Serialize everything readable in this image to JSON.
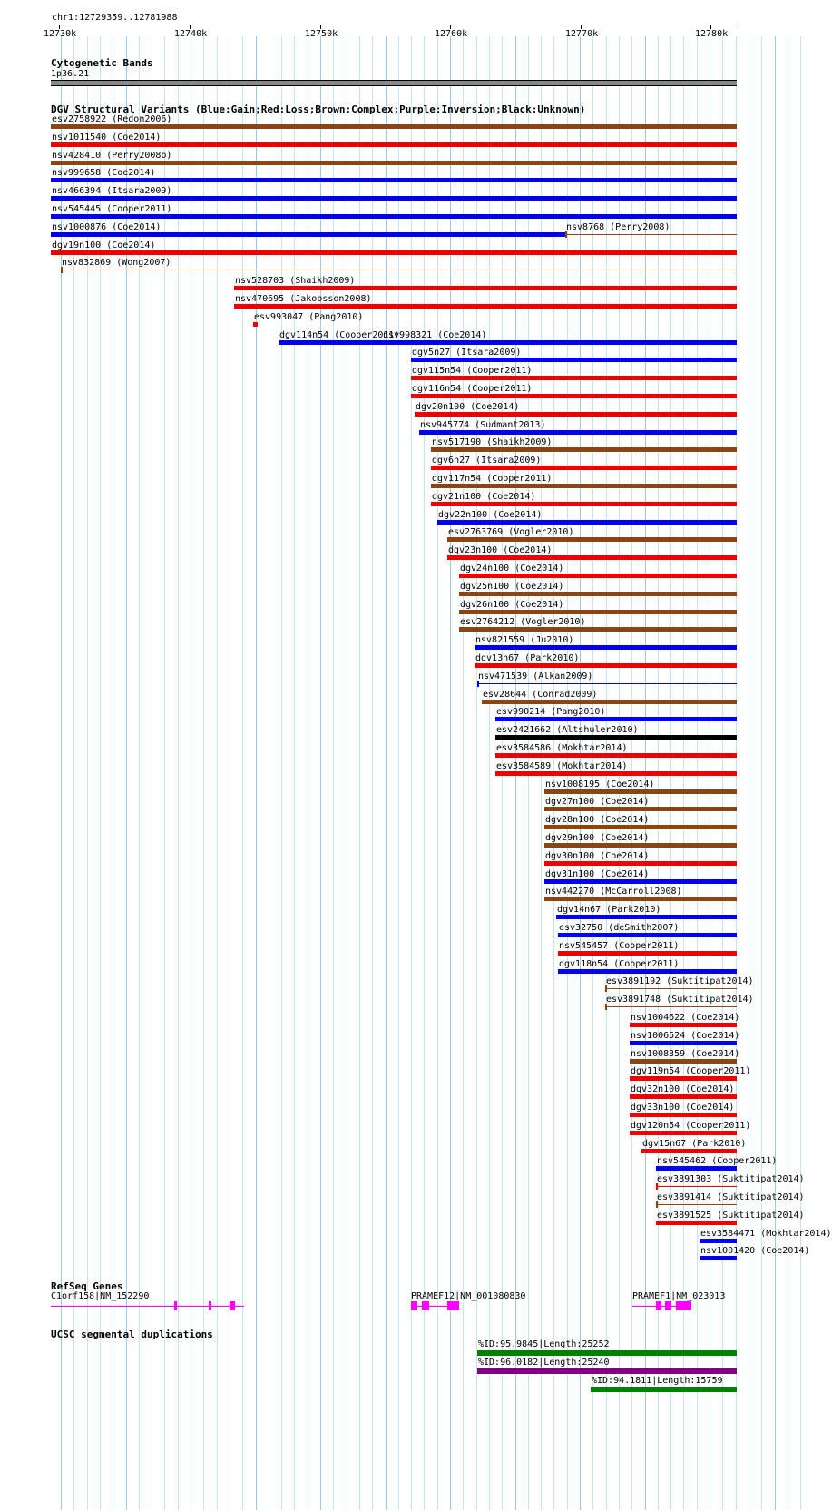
{
  "ruler": {
    "range_label": "chr1:12729359..12781988",
    "ticks": [
      "12730k",
      "12740k",
      "12750k",
      "12760k",
      "12770k",
      "12780k"
    ]
  },
  "cytoband": {
    "title": "Cytogenetic Bands",
    "band_label": "1p36.21"
  },
  "dgv": {
    "title": "DGV Structural Variants (Blue:Gain;Red:Loss;Brown:Complex;Purple:Inversion;Black:Unknown)",
    "colors": {
      "gain": "#0000ee",
      "loss": "#ee0000",
      "complex": "#8b4513",
      "inversion": "#800080",
      "unknown": "#000000"
    },
    "variants": [
      {
        "label": "esv2758922 (Redon2006)",
        "type": "complex",
        "start": 12729359,
        "end": 12781988
      },
      {
        "label": "nsv1011540 (Coe2014)",
        "type": "loss",
        "start": 12729359,
        "end": 12781988
      },
      {
        "label": "nsv428410 (Perry2008b)",
        "type": "complex",
        "start": 12729359,
        "end": 12781988
      },
      {
        "label": "nsv999658 (Coe2014)",
        "type": "gain",
        "start": 12729359,
        "end": 12781988
      },
      {
        "label": "nsv466394 (Itsara2009)",
        "type": "gain",
        "start": 12729359,
        "end": 12781988
      },
      {
        "label": "nsv545445 (Cooper2011)",
        "type": "gain",
        "start": 12729359,
        "end": 12781988
      },
      {
        "label": "nsv1000876 (Coe2014)",
        "type": "gain",
        "start": 12729359,
        "end": 12768800
      },
      {
        "label": "nsv8768 (Perry2008)",
        "type": "complex",
        "start": 12768800,
        "end": 12781988,
        "thin": true,
        "row": 6
      },
      {
        "label": "dgv19n100 (Coe2014)",
        "type": "loss",
        "start": 12729359,
        "end": 12781988
      },
      {
        "label": "nsv832869 (Wong2007)",
        "type": "complex",
        "start": 12730100,
        "end": 12781988,
        "thin": true
      },
      {
        "label": "nsv528703 (Shaikh2009)",
        "type": "loss",
        "start": 12743400,
        "end": 12781988
      },
      {
        "label": "nsv470695 (Jakobsson2008)",
        "type": "loss",
        "start": 12743400,
        "end": 12781988
      },
      {
        "label": "esv993047 (Pang2010)",
        "type": "loss",
        "start": 12744900,
        "end": 12745200
      },
      {
        "label": "nsv998321 (Coe2014)",
        "type": "gain",
        "start": 12754800,
        "end": 12781988,
        "row": 12
      },
      {
        "label": "dgv114n54 (Cooper2011)",
        "type": "gain",
        "start": 12746800,
        "end": 12781988
      },
      {
        "label": "dgv5n27 (Itsara2009)",
        "type": "gain",
        "start": 12757000,
        "end": 12781988
      },
      {
        "label": "dgv115n54 (Cooper2011)",
        "type": "loss",
        "start": 12757000,
        "end": 12781988
      },
      {
        "label": "dgv116n54 (Cooper2011)",
        "type": "loss",
        "start": 12757000,
        "end": 12781988
      },
      {
        "label": "dgv20n100 (Coe2014)",
        "type": "loss",
        "start": 12757300,
        "end": 12781988
      },
      {
        "label": "nsv945774 (Sudmant2013)",
        "type": "gain",
        "start": 12757600,
        "end": 12781988
      },
      {
        "label": "nsv517190 (Shaikh2009)",
        "type": "complex",
        "start": 12758500,
        "end": 12781988
      },
      {
        "label": "dgv6n27 (Itsara2009)",
        "type": "loss",
        "start": 12758500,
        "end": 12781988
      },
      {
        "label": "dgv117n54 (Cooper2011)",
        "type": "complex",
        "start": 12758500,
        "end": 12781988
      },
      {
        "label": "dgv21n100 (Coe2014)",
        "type": "loss",
        "start": 12758500,
        "end": 12781988
      },
      {
        "label": "dgv22n100 (Coe2014)",
        "type": "gain",
        "start": 12759000,
        "end": 12781988
      },
      {
        "label": "esv2763769 (Vogler2010)",
        "type": "complex",
        "start": 12759800,
        "end": 12781988
      },
      {
        "label": "dgv23n100 (Coe2014)",
        "type": "loss",
        "start": 12759800,
        "end": 12781988
      },
      {
        "label": "dgv24n100 (Coe2014)",
        "type": "loss",
        "start": 12760700,
        "end": 12781988
      },
      {
        "label": "dgv25n100 (Coe2014)",
        "type": "complex",
        "start": 12760700,
        "end": 12781988
      },
      {
        "label": "dgv26n100 (Coe2014)",
        "type": "complex",
        "start": 12760700,
        "end": 12781988
      },
      {
        "label": "esv2764212 (Vogler2010)",
        "type": "complex",
        "start": 12760700,
        "end": 12781988
      },
      {
        "label": "nsv821559 (Ju2010)",
        "type": "gain",
        "start": 12761900,
        "end": 12781988
      },
      {
        "label": "dgv13n67 (Park2010)",
        "type": "loss",
        "start": 12761900,
        "end": 12781988
      },
      {
        "label": "nsv471539 (Alkan2009)",
        "type": "gain",
        "start": 12762100,
        "end": 12781988,
        "thin": true
      },
      {
        "label": "esv28644 (Conrad2009)",
        "type": "complex",
        "start": 12762400,
        "end": 12781988
      },
      {
        "label": "esv990214 (Pang2010)",
        "type": "gain",
        "start": 12763500,
        "end": 12781988
      },
      {
        "label": "esv2421662 (Altshuler2010)",
        "type": "unknown",
        "start": 12763500,
        "end": 12781988
      },
      {
        "label": "esv3584586 (Mokhtar2014)",
        "type": "loss",
        "start": 12763500,
        "end": 12781988
      },
      {
        "label": "esv3584589 (Mokhtar2014)",
        "type": "loss",
        "start": 12763500,
        "end": 12781988
      },
      {
        "label": "nsv1008195 (Coe2014)",
        "type": "complex",
        "start": 12767200,
        "end": 12781988
      },
      {
        "label": "dgv27n100 (Coe2014)",
        "type": "complex",
        "start": 12767200,
        "end": 12781988
      },
      {
        "label": "dgv28n100 (Coe2014)",
        "type": "complex",
        "start": 12767200,
        "end": 12781988
      },
      {
        "label": "dgv29n100 (Coe2014)",
        "type": "complex",
        "start": 12767200,
        "end": 12781988
      },
      {
        "label": "dgv30n100 (Coe2014)",
        "type": "loss",
        "start": 12767200,
        "end": 12781988
      },
      {
        "label": "dgv31n100 (Coe2014)",
        "type": "gain",
        "start": 12767200,
        "end": 12781988
      },
      {
        "label": "nsv442270 (McCarroll2008)",
        "type": "complex",
        "start": 12767200,
        "end": 12781988
      },
      {
        "label": "dgv14n67 (Park2010)",
        "type": "gain",
        "start": 12768100,
        "end": 12781988
      },
      {
        "label": "esv32750 (deSmith2007)",
        "type": "gain",
        "start": 12768300,
        "end": 12781988
      },
      {
        "label": "nsv545457 (Cooper2011)",
        "type": "loss",
        "start": 12768300,
        "end": 12781988
      },
      {
        "label": "dgv118n54 (Cooper2011)",
        "type": "gain",
        "start": 12768300,
        "end": 12781988
      },
      {
        "label": "esv3891192 (Suktitipat2014)",
        "type": "complex",
        "start": 12771900,
        "end": 12781988,
        "thin": true
      },
      {
        "label": "esv3891748 (Suktitipat2014)",
        "type": "complex",
        "start": 12771900,
        "end": 12781988,
        "thin": true
      },
      {
        "label": "nsv1004622 (Coe2014)",
        "type": "loss",
        "start": 12773800,
        "end": 12781988
      },
      {
        "label": "nsv1006524 (Coe2014)",
        "type": "gain",
        "start": 12773800,
        "end": 12781988
      },
      {
        "label": "nsv1008359 (Coe2014)",
        "type": "complex",
        "start": 12773800,
        "end": 12781988
      },
      {
        "label": "dgv119n54 (Cooper2011)",
        "type": "loss",
        "start": 12773800,
        "end": 12781988
      },
      {
        "label": "dgv32n100 (Coe2014)",
        "type": "loss",
        "start": 12773800,
        "end": 12781988
      },
      {
        "label": "dgv33n100 (Coe2014)",
        "type": "loss",
        "start": 12773800,
        "end": 12781988
      },
      {
        "label": "dgv120n54 (Cooper2011)",
        "type": "loss",
        "start": 12773800,
        "end": 12781988
      },
      {
        "label": "dgv15n67 (Park2010)",
        "type": "loss",
        "start": 12774700,
        "end": 12781988
      },
      {
        "label": "nsv545462 (Cooper2011)",
        "type": "gain",
        "start": 12775800,
        "end": 12781988
      },
      {
        "label": "esv3891303 (Suktitipat2014)",
        "type": "loss",
        "start": 12775800,
        "end": 12781988,
        "thin": true
      },
      {
        "label": "esv3891414 (Suktitipat2014)",
        "type": "complex",
        "start": 12775800,
        "end": 12781988,
        "thin": true
      },
      {
        "label": "esv3891525 (Suktitipat2014)",
        "type": "loss",
        "start": 12775800,
        "end": 12781988
      },
      {
        "label": "esv3584471 (Mokhtar2014)",
        "type": "gain",
        "start": 12779100,
        "end": 12781988
      },
      {
        "label": "nsv1001420 (Coe2014)",
        "type": "gain",
        "start": 12779100,
        "end": 12781988
      }
    ]
  },
  "refseq": {
    "title": "RefSeq Genes",
    "color": "#ff00ff",
    "genes": [
      {
        "label": "C1orf158|NM_152290",
        "start": 12729359,
        "end": 12744200,
        "exons": [
          [
            12738800,
            12738900
          ],
          [
            12741500,
            12741650
          ],
          [
            12743100,
            12743500
          ]
        ]
      },
      {
        "label": "PRAMEF12|NM_001080830",
        "start": 12757000,
        "end": 12760700,
        "exons": [
          [
            12757000,
            12757500
          ],
          [
            12757800,
            12758400
          ],
          [
            12759800,
            12760700
          ]
        ]
      },
      {
        "label": "PRAMEF1|NM_023013",
        "start": 12774000,
        "end": 12777500,
        "exons": [
          [
            12775800,
            12776200
          ],
          [
            12776500,
            12777000
          ],
          [
            12777300,
            12778500
          ]
        ]
      }
    ]
  },
  "segdups": {
    "title": "UCSC segmental duplications",
    "items": [
      {
        "label": "%ID:95.9845|Length:25252",
        "color": "#008000",
        "start": 12762100,
        "end": 12781988
      },
      {
        "label": "%ID:96.0182|Length:25240",
        "color": "#800080",
        "start": 12762100,
        "end": 12781988
      },
      {
        "label": "%ID:94.1811|Length:15759",
        "color": "#008000",
        "start": 12770800,
        "end": 12781988
      }
    ]
  }
}
